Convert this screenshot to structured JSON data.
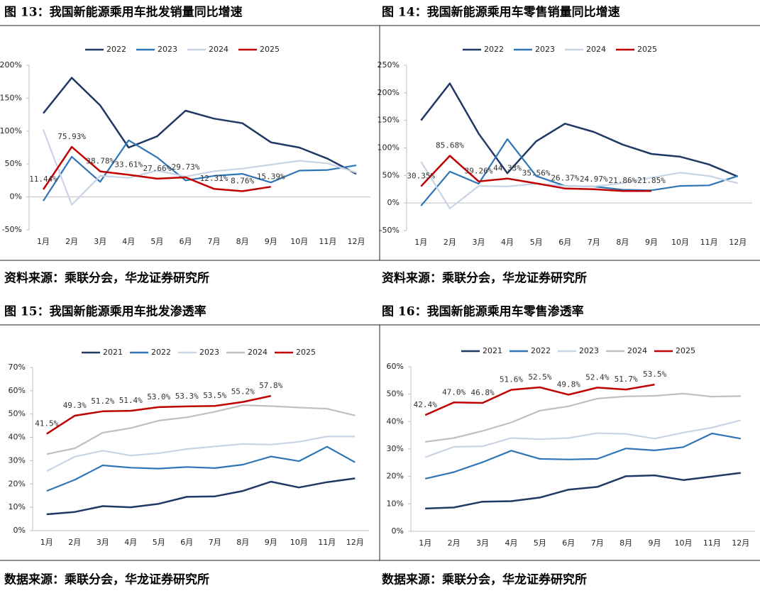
{
  "chart_data": [
    {
      "type": "line",
      "title": "图 13：我国新能源乘用车批发销量同比增速",
      "source": "资料来源：乘联分会，华龙证券研究所",
      "categories": [
        "1月",
        "2月",
        "3月",
        "4月",
        "5月",
        "6月",
        "7月",
        "8月",
        "9月",
        "10月",
        "11月",
        "12月"
      ],
      "ylim": [
        -50,
        200
      ],
      "yticks": [
        {
          "value": -50,
          "label": "-50%"
        },
        {
          "value": 0,
          "label": "0%"
        },
        {
          "value": 50,
          "label": "50%"
        },
        {
          "value": 100,
          "label": "100%"
        },
        {
          "value": 150,
          "label": "150%"
        },
        {
          "value": 200,
          "label": "200%"
        }
      ],
      "series": [
        {
          "name": "2022",
          "color": "#1f3864",
          "values": [
            127,
            181,
            139,
            75,
            92,
            131,
            119,
            112,
            83,
            75,
            58,
            35
          ]
        },
        {
          "name": "2023",
          "color": "#2e75b6",
          "values": [
            -6,
            61,
            23,
            86,
            60,
            25,
            32,
            35,
            22,
            40,
            41,
            48
          ]
        },
        {
          "name": "2024",
          "color": "#c8d4e6",
          "values": [
            102,
            -12,
            32,
            29,
            40,
            31,
            39,
            43,
            49,
            55,
            51,
            37
          ]
        },
        {
          "name": "2025",
          "color": "#c00000",
          "values": [
            11.44,
            75.93,
            38.78,
            33.61,
            27.66,
            29.73,
            12.31,
            8.76,
            15.39,
            null,
            null,
            null
          ],
          "value_labels": [
            "11.44%",
            "75.93%",
            "38.78%",
            "33.61%",
            "27.66%",
            "29.73%",
            "12.31%",
            "8.76%",
            "15.39%",
            null,
            null,
            null
          ]
        }
      ]
    },
    {
      "type": "line",
      "title": "图 14：我国新能源乘用车零售销量同比增速",
      "source": "资料来源：乘联分会，华龙证券研究所",
      "categories": [
        "1月",
        "2月",
        "3月",
        "4月",
        "5月",
        "6月",
        "7月",
        "8月",
        "9月",
        "10月",
        "11月",
        "12月"
      ],
      "ylim": [
        -50,
        250
      ],
      "yticks": [
        {
          "value": -50,
          "label": "-50%"
        },
        {
          "value": 0,
          "label": "0%"
        },
        {
          "value": 50,
          "label": "50%"
        },
        {
          "value": 100,
          "label": "100%"
        },
        {
          "value": 150,
          "label": "150%"
        },
        {
          "value": 200,
          "label": "200%"
        },
        {
          "value": 250,
          "label": "250%"
        }
      ],
      "series": [
        {
          "name": "2022",
          "color": "#1f3864",
          "values": [
            150,
            217,
            126,
            54,
            112,
            144,
            129,
            106,
            89,
            84,
            70,
            48
          ]
        },
        {
          "name": "2023",
          "color": "#2e75b6",
          "values": [
            -5,
            57,
            35,
            116,
            49,
            31,
            30,
            24,
            23,
            31,
            32,
            49
          ]
        },
        {
          "name": "2024",
          "color": "#c8d4e6",
          "values": [
            75,
            -10,
            31,
            30,
            35,
            31,
            30,
            36,
            46,
            55,
            49,
            36
          ]
        },
        {
          "name": "2025",
          "color": "#c00000",
          "values": [
            30.35,
            85.68,
            39.26,
            44.33,
            35.56,
            26.37,
            24.97,
            21.86,
            21.85,
            null,
            null,
            null
          ],
          "value_labels": [
            "30.35%",
            "85.68%",
            "39.26%",
            "44.33%",
            "35.56%",
            "26.37%",
            "24.97%",
            "21.86%",
            "21.85%",
            null,
            null,
            null
          ]
        }
      ]
    },
    {
      "type": "line",
      "title": "图 15：我国新能源乘用车批发渗透率",
      "source": "数据来源：乘联分会，华龙证券研究所",
      "categories": [
        "1月",
        "2月",
        "3月",
        "4月",
        "5月",
        "6月",
        "7月",
        "8月",
        "9月",
        "10月",
        "11月",
        "12月"
      ],
      "ylim": [
        0,
        70
      ],
      "yticks": [
        {
          "value": 0,
          "label": "0%"
        },
        {
          "value": 10,
          "label": "10%"
        },
        {
          "value": 20,
          "label": "20%"
        },
        {
          "value": 30,
          "label": "30%"
        },
        {
          "value": 40,
          "label": "40%"
        },
        {
          "value": 50,
          "label": "50%"
        },
        {
          "value": 60,
          "label": "60%"
        },
        {
          "value": 70,
          "label": "70%"
        }
      ],
      "series": [
        {
          "name": "2021",
          "color": "#1f3864",
          "values": [
            7,
            8,
            10.5,
            10,
            11.5,
            14.5,
            14.7,
            17,
            21,
            18.5,
            20.8,
            22.4
          ]
        },
        {
          "name": "2022",
          "color": "#2e75b6",
          "values": [
            17,
            21.8,
            28,
            27,
            26.6,
            27.3,
            26.8,
            28.3,
            31.8,
            29.8,
            36,
            29.3
          ]
        },
        {
          "name": "2023",
          "color": "#c8d4e6",
          "values": [
            25.5,
            31.7,
            34.3,
            32.2,
            33.2,
            35,
            36.1,
            37.2,
            36.9,
            38.1,
            40.4,
            40.4
          ]
        },
        {
          "name": "2024",
          "color": "#bfbfbf",
          "values": [
            32.8,
            35.3,
            42,
            44,
            47.2,
            48.6,
            51,
            53.8,
            53.4,
            52.8,
            52.3,
            49.4
          ]
        },
        {
          "name": "2025",
          "color": "#c00000",
          "values": [
            41.5,
            49.3,
            51.2,
            51.4,
            53.0,
            53.3,
            53.5,
            55.2,
            57.8,
            null,
            null,
            null
          ],
          "value_labels": [
            "41.5%",
            "49.3%",
            "51.2%",
            "51.4%",
            "53.0%",
            "53.3%",
            "53.5%",
            "55.2%",
            "57.8%",
            null,
            null,
            null
          ]
        }
      ]
    },
    {
      "type": "line",
      "title": "图 16：我国新能源乘用车零售渗透率",
      "source": "数据来源：乘联分会，华龙证券研究所",
      "categories": [
        "1月",
        "2月",
        "3月",
        "4月",
        "5月",
        "6月",
        "7月",
        "8月",
        "9月",
        "10月",
        "11月",
        "12月"
      ],
      "ylim": [
        0,
        60
      ],
      "yticks": [
        {
          "value": 0,
          "label": "0%"
        },
        {
          "value": 10,
          "label": "10%"
        },
        {
          "value": 20,
          "label": "20%"
        },
        {
          "value": 30,
          "label": "30%"
        },
        {
          "value": 40,
          "label": "40%"
        },
        {
          "value": 50,
          "label": "50%"
        },
        {
          "value": 60,
          "label": "60%"
        }
      ],
      "series": [
        {
          "name": "2021",
          "color": "#1f3864",
          "values": [
            8.3,
            8.7,
            10.8,
            11,
            12.3,
            15.2,
            16.2,
            20.1,
            20.4,
            18.7,
            20,
            21.3
          ]
        },
        {
          "name": "2022",
          "color": "#2e75b6",
          "values": [
            19.2,
            21.6,
            25.2,
            29.4,
            26.4,
            26.2,
            26.4,
            30.2,
            29.5,
            30.7,
            35.7,
            33.8
          ]
        },
        {
          "name": "2023",
          "color": "#c8d4e6",
          "values": [
            27,
            30.8,
            31,
            34,
            33.6,
            34,
            35.8,
            35.5,
            33.8,
            36,
            37.8,
            40.5
          ]
        },
        {
          "name": "2024",
          "color": "#bfbfbf",
          "values": [
            32.6,
            34,
            36.6,
            39.7,
            44,
            45.6,
            48.4,
            49.2,
            49.4,
            50.2,
            49.1,
            49.3
          ]
        },
        {
          "name": "2025",
          "color": "#c00000",
          "values": [
            42.4,
            47.0,
            46.8,
            51.6,
            52.5,
            49.8,
            52.4,
            51.7,
            53.5,
            null,
            null,
            null
          ],
          "value_labels": [
            "42.4%",
            "47.0%",
            "46.8%",
            "51.6%",
            "52.5%",
            "49.8%",
            "52.4%",
            "51.7%",
            "53.5%",
            null,
            null,
            null
          ]
        }
      ]
    }
  ]
}
